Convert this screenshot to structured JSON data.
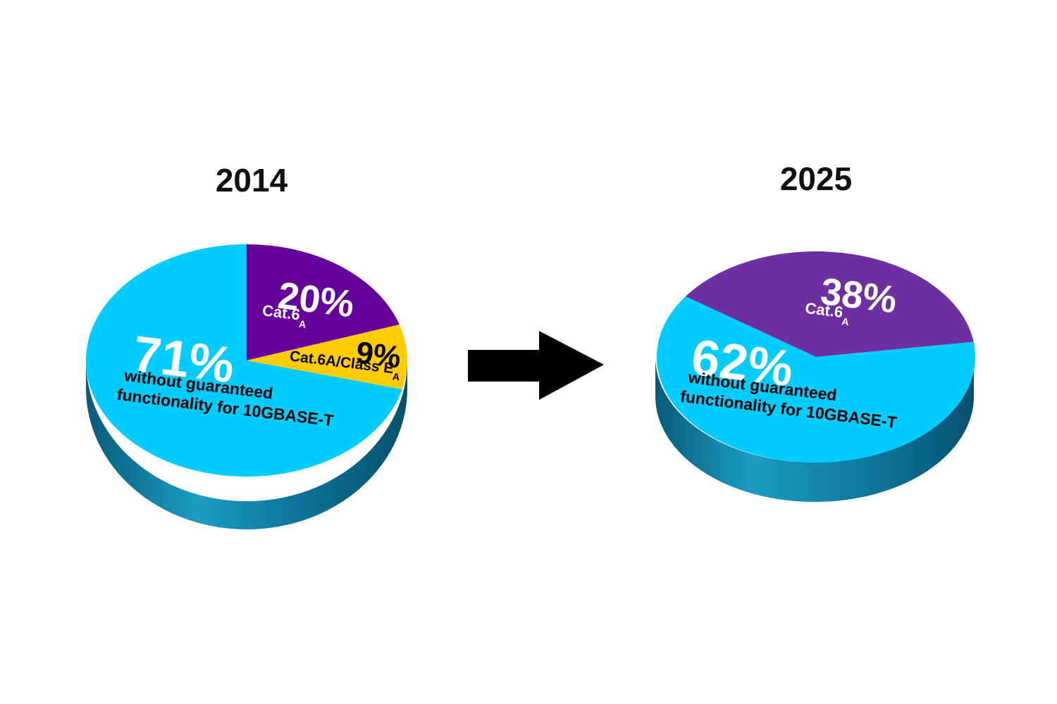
{
  "chart_data": [
    {
      "type": "pie",
      "title": "2014",
      "colors": {
        "cyan": "#00ccff",
        "purple": "#65009a",
        "yellow": "#ffcc00",
        "side": "#0a6d8f"
      },
      "slices": [
        {
          "value": 20,
          "value_label": "20%",
          "label": "Cat.6",
          "label_sub": "A",
          "color": "#65009a"
        },
        {
          "value": 9,
          "value_label": "9%",
          "label": "Cat.6A/Class E",
          "label_sub": "A",
          "color": "#ffcc00"
        },
        {
          "value": 71,
          "value_label": "71%",
          "label": "without guaranteed",
          "label_line2": "functionality for 10GBASE-T",
          "color": "#00ccff"
        }
      ]
    },
    {
      "type": "pie",
      "title": "2025",
      "colors": {
        "cyan": "#00ccff",
        "purple": "#6e30a0",
        "side": "#0a6d8f"
      },
      "slices": [
        {
          "value": 38,
          "value_label": "38%",
          "label": "Cat.6",
          "label_sub": "A",
          "color": "#6e30a0"
        },
        {
          "value": 62,
          "value_label": "62%",
          "label": "without guaranteed",
          "label_line2": "functionality for 10GBASE-T",
          "color": "#00ccff"
        }
      ]
    }
  ],
  "arrow_icon": "right-arrow-icon"
}
